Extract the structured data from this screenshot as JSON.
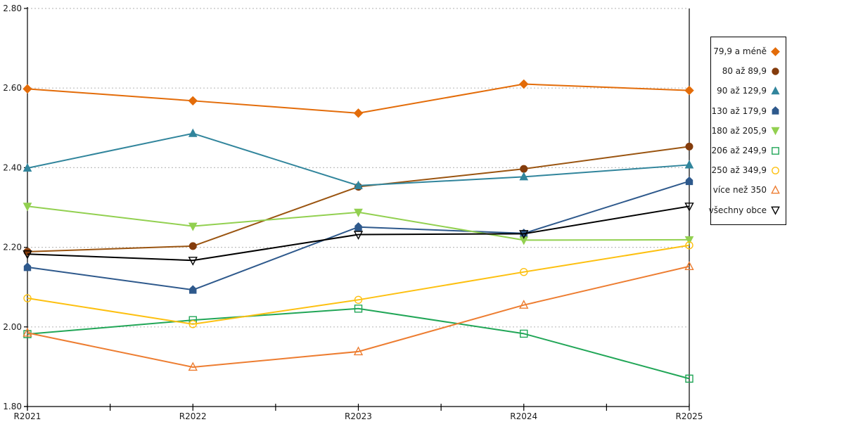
{
  "chart_data": {
    "type": "line",
    "title": "",
    "xlabel": "",
    "ylabel": "",
    "x_categories": [
      "R2021",
      "R2022",
      "R2023",
      "R2024",
      "R2025"
    ],
    "y_axis": {
      "min": 1.8,
      "max": 2.8,
      "step": 0.2,
      "tick_labels": [
        "1.80",
        "2.00",
        "2.20",
        "2.40",
        "2.60",
        "2.80"
      ]
    },
    "grid": "horizontal-dotted",
    "grid_color": "#bfbfbf",
    "axis_color": "#000000",
    "legend_position": "right",
    "series": [
      {
        "name": "79,9 a méně",
        "color": "#e36c09",
        "marker": "diamond",
        "marker_fill": "filled",
        "values": [
          2.598,
          2.568,
          2.537,
          2.61,
          2.594
        ]
      },
      {
        "name": "80 až 89,9",
        "color": "#9a5410",
        "marker_color": "#843c0c",
        "marker": "circle",
        "marker_fill": "filled",
        "values": [
          2.189,
          2.203,
          2.352,
          2.397,
          2.453
        ]
      },
      {
        "name": "90 až 129,9",
        "color": "#31859c",
        "marker": "triangle-up",
        "marker_fill": "filled",
        "values": [
          2.399,
          2.486,
          2.355,
          2.377,
          2.407
        ]
      },
      {
        "name": "130 až 179,9",
        "color": "#2e598c",
        "marker": "pentagon",
        "marker_fill": "filled",
        "values": [
          2.15,
          2.093,
          2.251,
          2.235,
          2.366
        ]
      },
      {
        "name": "180 až 205,9",
        "color": "#92d050",
        "marker": "triangle-down",
        "marker_fill": "filled",
        "values": [
          2.303,
          2.253,
          2.288,
          2.218,
          2.219
        ]
      },
      {
        "name": "206 až 249,9",
        "color": "#21a657",
        "marker": "square",
        "marker_fill": "open",
        "values": [
          1.982,
          2.017,
          2.046,
          1.983,
          1.87
        ]
      },
      {
        "name": "250 až 349,9",
        "color": "#fdc010",
        "marker": "circle",
        "marker_fill": "open",
        "values": [
          2.072,
          2.007,
          2.068,
          2.138,
          2.205
        ]
      },
      {
        "name": "více než 350",
        "color": "#ed7d31",
        "marker": "triangle-up",
        "marker_fill": "open",
        "values": [
          1.985,
          1.899,
          1.938,
          2.055,
          2.152
        ]
      },
      {
        "name": "všechny obce",
        "color": "#000000",
        "marker": "triangle-down",
        "marker_fill": "open",
        "values": [
          2.183,
          2.167,
          2.232,
          2.234,
          2.303
        ]
      }
    ]
  }
}
